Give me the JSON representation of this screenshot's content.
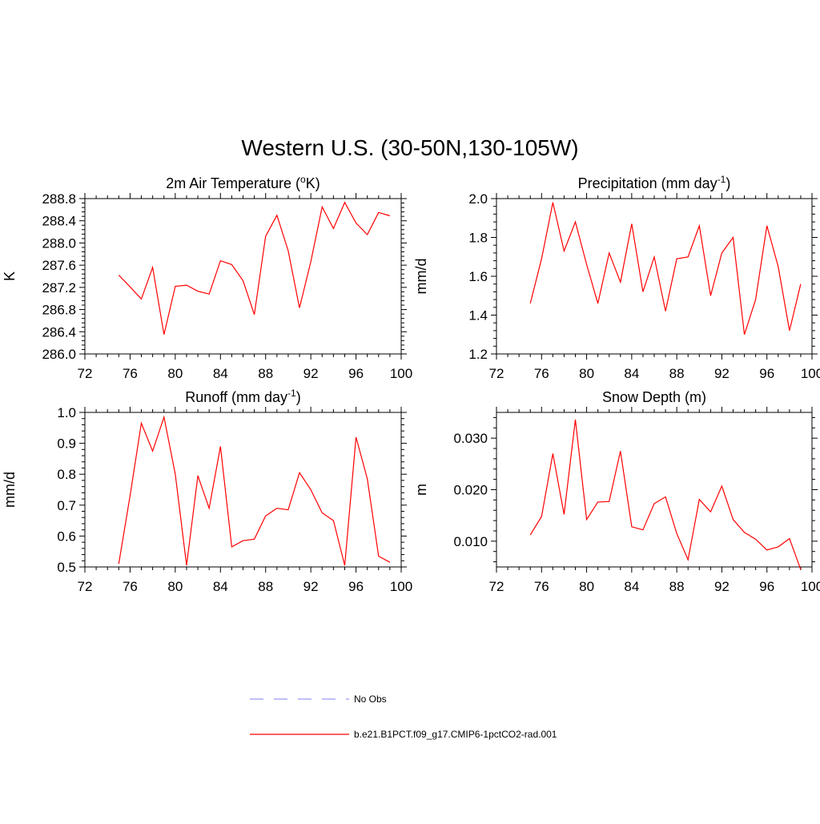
{
  "title": "Western U.S. (30-50N,130-105W)",
  "chart_data": [
    {
      "type": "line",
      "title_main": "2m Air Temperature (",
      "title_sup": "o",
      "title_end": "K)",
      "ylabel": "K",
      "xlim": [
        72,
        100
      ],
      "ylim": [
        286.0,
        288.8
      ],
      "x_ticks": [
        "72",
        "76",
        "80",
        "84",
        "88",
        "92",
        "96",
        "100"
      ],
      "y_ticks": [
        "286.0",
        "286.4",
        "286.8",
        "287.2",
        "287.6",
        "288.0",
        "288.4",
        "288.8"
      ],
      "series": [
        {
          "color": "#ff0000",
          "x": [
            75,
            76,
            77,
            78,
            79,
            80,
            81,
            82,
            83,
            84,
            85,
            86,
            87,
            88,
            89,
            90,
            91,
            92,
            93,
            94,
            95,
            96,
            97,
            98,
            99
          ],
          "y": [
            287.42,
            287.21,
            286.99,
            287.56,
            286.35,
            287.22,
            287.24,
            287.13,
            287.08,
            287.68,
            287.61,
            287.32,
            286.71,
            288.12,
            288.5,
            287.86,
            286.83,
            287.66,
            288.65,
            288.26,
            288.73,
            288.36,
            288.15,
            288.55,
            288.49
          ]
        }
      ]
    },
    {
      "type": "line",
      "title_main": "Precipitation (mm day",
      "title_sup": "-1",
      "title_end": ")",
      "ylabel": "mm/d",
      "xlim": [
        72,
        100
      ],
      "ylim": [
        1.2,
        2.0
      ],
      "x_ticks": [
        "72",
        "76",
        "80",
        "84",
        "88",
        "92",
        "96",
        "100"
      ],
      "y_ticks": [
        "1.2",
        "1.4",
        "1.6",
        "1.8",
        "2.0"
      ],
      "series": [
        {
          "color": "#ff0000",
          "x": [
            75,
            76,
            77,
            78,
            79,
            80,
            81,
            82,
            83,
            84,
            85,
            86,
            87,
            88,
            89,
            90,
            91,
            92,
            93,
            94,
            95,
            96,
            97,
            98,
            99
          ],
          "y": [
            1.46,
            1.69,
            1.98,
            1.73,
            1.88,
            1.66,
            1.46,
            1.72,
            1.57,
            1.87,
            1.52,
            1.7,
            1.42,
            1.69,
            1.7,
            1.86,
            1.5,
            1.72,
            1.8,
            1.3,
            1.48,
            1.86,
            1.65,
            1.32,
            1.56
          ]
        }
      ]
    },
    {
      "type": "line",
      "title_main": "Runoff (mm day",
      "title_sup": "-1",
      "title_end": ")",
      "ylabel": "mm/d",
      "xlim": [
        72,
        100
      ],
      "ylim": [
        0.5,
        1.0
      ],
      "x_ticks": [
        "72",
        "76",
        "80",
        "84",
        "88",
        "92",
        "96",
        "100"
      ],
      "y_ticks": [
        "0.5",
        "0.6",
        "0.7",
        "0.8",
        "0.9",
        "1.0"
      ],
      "series": [
        {
          "color": "#ff0000",
          "x": [
            75,
            76,
            77,
            78,
            79,
            80,
            81,
            82,
            83,
            84,
            85,
            86,
            87,
            88,
            89,
            90,
            91,
            92,
            93,
            94,
            95,
            96,
            97,
            98,
            99
          ],
          "y": [
            0.51,
            0.73,
            0.965,
            0.875,
            0.985,
            0.8,
            0.505,
            0.795,
            0.69,
            0.89,
            0.565,
            0.585,
            0.59,
            0.665,
            0.69,
            0.685,
            0.805,
            0.75,
            0.675,
            0.65,
            0.505,
            0.92,
            0.785,
            0.535,
            0.515
          ]
        }
      ]
    },
    {
      "type": "line",
      "title_main": "Snow Depth (m)",
      "title_sup": "",
      "title_end": "",
      "ylabel": "m",
      "xlim": [
        72,
        100
      ],
      "ylim": [
        0.005,
        0.035
      ],
      "x_ticks": [
        "72",
        "76",
        "80",
        "84",
        "88",
        "92",
        "96",
        "100"
      ],
      "y_ticks": [
        "0.010",
        "0.020",
        "0.030"
      ],
      "series": [
        {
          "color": "#ff0000",
          "x": [
            75,
            76,
            77,
            78,
            79,
            80,
            81,
            82,
            83,
            84,
            85,
            86,
            87,
            88,
            89,
            90,
            91,
            92,
            93,
            94,
            95,
            96,
            97,
            98,
            99
          ],
          "y": [
            0.0112,
            0.0148,
            0.027,
            0.0152,
            0.0336,
            0.0142,
            0.0176,
            0.0177,
            0.0275,
            0.0128,
            0.0122,
            0.0173,
            0.0186,
            0.0115,
            0.0064,
            0.0181,
            0.0157,
            0.0207,
            0.0142,
            0.0117,
            0.0104,
            0.0083,
            0.0089,
            0.0105,
            0.0045
          ]
        }
      ]
    }
  ],
  "legend": [
    {
      "label": "No Obs",
      "color": "#9a9af0",
      "dash": true
    },
    {
      "label": "b.e21.B1PCT.f09_g17.CMIP6-1pctCO2-rad.001",
      "color": "#ff0000",
      "dash": false
    }
  ]
}
